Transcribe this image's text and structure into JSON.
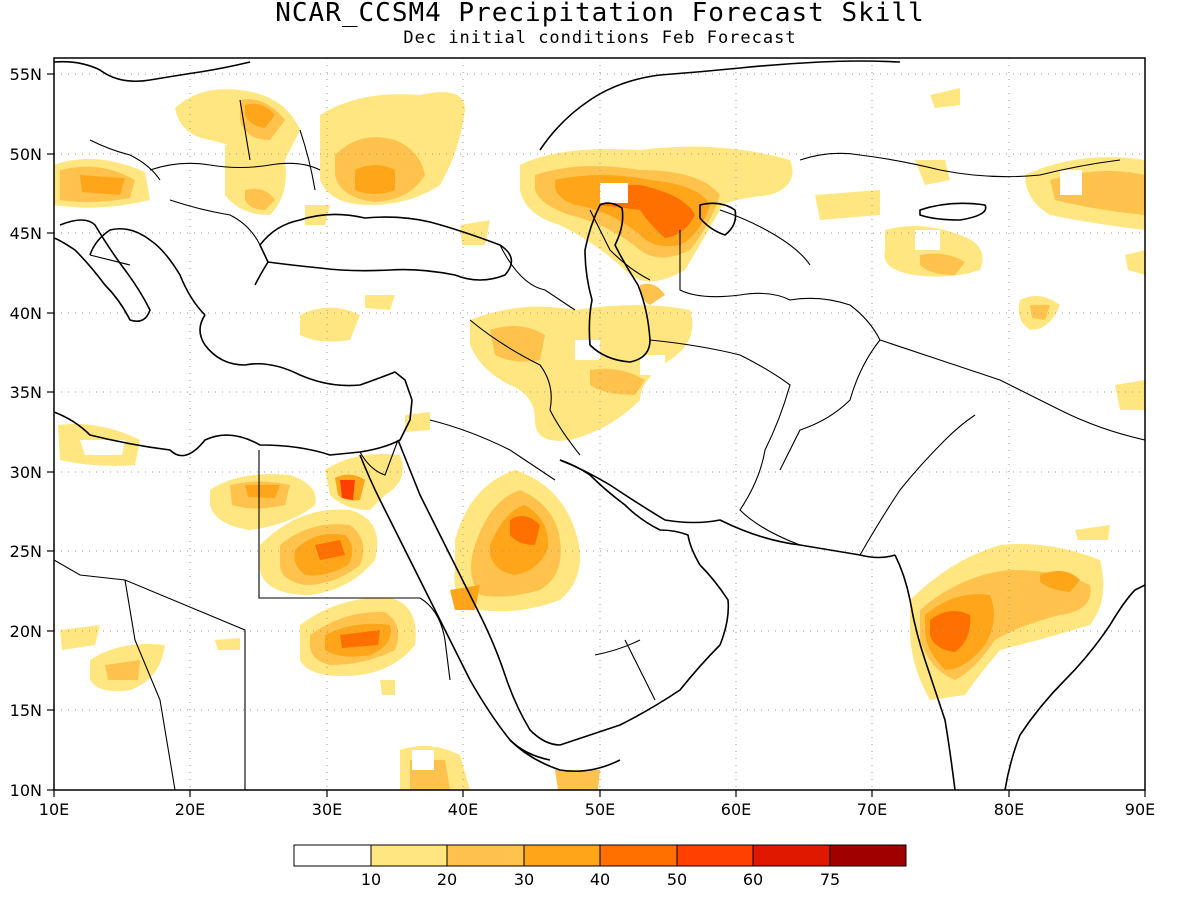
{
  "title": "NCAR_CCSM4 Precipitation Forecast Skill",
  "subtitle": "Dec initial conditions  Feb Forecast",
  "map": {
    "lon_range": [
      10,
      90
    ],
    "lat_range": [
      10,
      56
    ],
    "grid": "dotted",
    "x_tick_labels": [
      "10E",
      "20E",
      "30E",
      "40E",
      "50E",
      "60E",
      "70E",
      "80E",
      "90E"
    ],
    "y_tick_labels": [
      "10N",
      "15N",
      "20N",
      "25N",
      "30N",
      "35N",
      "40N",
      "45N",
      "50N",
      "55N"
    ]
  },
  "colorbar": {
    "colors": [
      "#ffffff",
      "#ffe680",
      "#ffc34d",
      "#ffa51a",
      "#ff7000",
      "#ff4000",
      "#e01800",
      "#a00000"
    ],
    "labels": [
      "10",
      "20",
      "30",
      "40",
      "50",
      "60",
      "75"
    ]
  }
}
